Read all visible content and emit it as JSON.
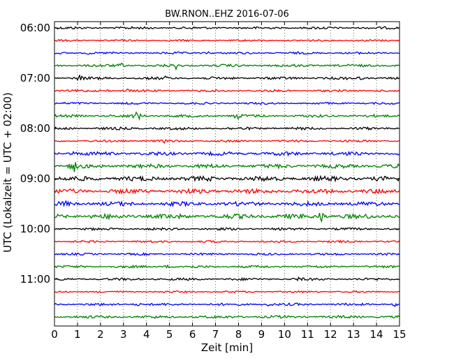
{
  "chart_data": {
    "type": "line",
    "title": "BW.RNON..EHZ 2016-07-06",
    "xlabel": "Zeit  [min]",
    "ylabel": "UTC (Lokalzeit = UTC + 02:00)",
    "xlim": [
      0,
      15
    ],
    "x_ticks": [
      "0",
      "1",
      "2",
      "3",
      "4",
      "5",
      "6",
      "7",
      "8",
      "9",
      "10",
      "11",
      "12",
      "13",
      "14",
      "15"
    ],
    "y_ticks": [
      "06:00",
      "07:00",
      "08:00",
      "09:00",
      "10:00",
      "11:00"
    ],
    "trace_interval_min": 15,
    "grid": "vertical dotted",
    "trace_colors": [
      "#000000",
      "#ff0000",
      "#0000ff",
      "#008000"
    ],
    "traces": [
      {
        "start": "06:00",
        "color": "#000000",
        "noise": 0.9,
        "events": [
          {
            "x": 4.1,
            "amp": 1.2
          }
        ]
      },
      {
        "start": "06:15",
        "color": "#ff0000",
        "noise": 0.7,
        "events": []
      },
      {
        "start": "06:30",
        "color": "#0000ff",
        "noise": 0.8,
        "events": [
          {
            "x": 1.5,
            "amp": 2.5
          },
          {
            "x": 6.7,
            "amp": 2.5
          }
        ]
      },
      {
        "start": "06:45",
        "color": "#008000",
        "noise": 1.0,
        "events": [
          {
            "x": 2.9,
            "amp": 3.5
          },
          {
            "x": 5.3,
            "amp": 5
          }
        ]
      },
      {
        "start": "07:00",
        "color": "#000000",
        "noise": 1.0,
        "events": [
          {
            "x": 1.1,
            "amp": 4
          },
          {
            "x": 4.8,
            "amp": 2
          },
          {
            "x": 13.3,
            "amp": 1.5
          }
        ]
      },
      {
        "start": "07:15",
        "color": "#ff0000",
        "noise": 0.8,
        "events": [
          {
            "x": 2.3,
            "amp": 1.5
          },
          {
            "x": 3.2,
            "amp": 2.5
          }
        ]
      },
      {
        "start": "07:30",
        "color": "#0000ff",
        "noise": 0.8,
        "events": []
      },
      {
        "start": "07:45",
        "color": "#008000",
        "noise": 1.0,
        "events": [
          {
            "x": 3.6,
            "amp": 9
          },
          {
            "x": 7.95,
            "amp": 7
          }
        ]
      },
      {
        "start": "08:00",
        "color": "#000000",
        "noise": 1.0,
        "events": []
      },
      {
        "start": "08:15",
        "color": "#ff0000",
        "noise": 0.8,
        "events": [
          {
            "x": 4.8,
            "amp": 1.5
          }
        ]
      },
      {
        "start": "08:30",
        "color": "#0000ff",
        "noise": 1.4,
        "events": [
          {
            "x": 0.8,
            "amp": 2
          },
          {
            "x": 10.0,
            "amp": 1.5
          }
        ]
      },
      {
        "start": "08:45",
        "color": "#008000",
        "noise": 1.5,
        "events": [
          {
            "x": 0.8,
            "amp": 14
          }
        ]
      },
      {
        "start": "09:00",
        "color": "#000000",
        "noise": 1.8,
        "events": []
      },
      {
        "start": "09:15",
        "color": "#ff0000",
        "noise": 1.7,
        "events": []
      },
      {
        "start": "09:30",
        "color": "#0000ff",
        "noise": 1.6,
        "events": [
          {
            "x": 0.5,
            "amp": 2
          }
        ]
      },
      {
        "start": "09:45",
        "color": "#008000",
        "noise": 1.8,
        "events": [
          {
            "x": 11.6,
            "amp": 10
          }
        ]
      },
      {
        "start": "10:00",
        "color": "#000000",
        "noise": 0.9,
        "events": []
      },
      {
        "start": "10:15",
        "color": "#ff0000",
        "noise": 0.8,
        "events": []
      },
      {
        "start": "10:30",
        "color": "#0000ff",
        "noise": 0.8,
        "events": []
      },
      {
        "start": "10:45",
        "color": "#008000",
        "noise": 0.9,
        "events": [
          {
            "x": 4.9,
            "amp": 2
          }
        ]
      },
      {
        "start": "11:00",
        "color": "#000000",
        "noise": 0.9,
        "events": [
          {
            "x": 10.6,
            "amp": 2.5
          }
        ]
      },
      {
        "start": "11:15",
        "color": "#ff0000",
        "noise": 0.7,
        "events": []
      },
      {
        "start": "11:30",
        "color": "#0000ff",
        "noise": 0.9,
        "events": [
          {
            "x": 3.6,
            "amp": 2.5
          },
          {
            "x": 9.3,
            "amp": 3
          },
          {
            "x": 14.8,
            "amp": 2
          }
        ]
      },
      {
        "start": "11:45",
        "color": "#008000",
        "noise": 1.0,
        "events": []
      }
    ]
  }
}
